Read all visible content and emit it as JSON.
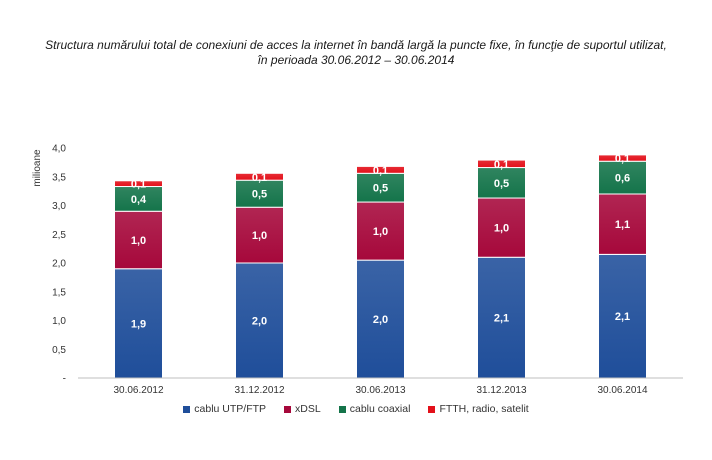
{
  "title_line1": "Structura numărului total de conexiuni de acces la internet în bandă largă la puncte fixe, în funcţie de suportul utilizat,",
  "title_line2": "în perioada 30.06.2012 – 30.06.2014",
  "chart_data": {
    "type": "bar",
    "stacked": true,
    "ylabel": "milioane",
    "ylim": [
      0,
      4.0
    ],
    "yticks": [
      "-",
      "0,5",
      "1,0",
      "1,5",
      "2,0",
      "2,5",
      "3,0",
      "3,5",
      "4,0"
    ],
    "categories": [
      "30.06.2012",
      "31.12.2012",
      "30.06.2013",
      "31.12.2013",
      "30.06.2014"
    ],
    "series": [
      {
        "name": "cablu UTP/FTP",
        "color": "#1f4e9a",
        "values": [
          1.9,
          2.0,
          2.05,
          2.1,
          2.15
        ],
        "labels": [
          "1,9",
          "2,0",
          "2,0",
          "2,1",
          "2,1"
        ]
      },
      {
        "name": "xDSL",
        "color": "#a6083b",
        "values": [
          1.0,
          0.97,
          1.01,
          1.03,
          1.05
        ],
        "labels": [
          "1,0",
          "1,0",
          "1,0",
          "1,0",
          "1,1"
        ]
      },
      {
        "name": "cablu coaxial",
        "color": "#14744a",
        "values": [
          0.43,
          0.47,
          0.5,
          0.53,
          0.57
        ],
        "labels": [
          "0,4",
          "0,5",
          "0,5",
          "0,5",
          "0,6"
        ]
      },
      {
        "name": "FTTH, radio, satelit",
        "color": "#e3101a",
        "values": [
          0.1,
          0.12,
          0.12,
          0.13,
          0.11
        ],
        "labels": [
          "0,1",
          "0,1",
          "0,1",
          "0,1",
          "0,1"
        ]
      }
    ],
    "legend": "bottom"
  }
}
